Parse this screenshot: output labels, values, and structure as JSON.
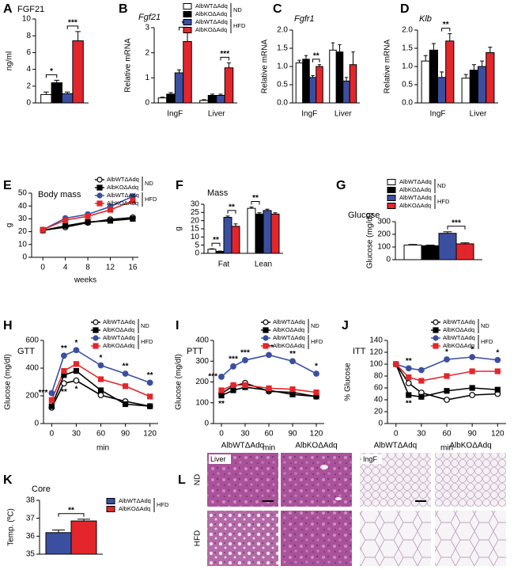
{
  "chart_data": [
    {
      "type": "bar",
      "panel": "A",
      "title": "FGF21",
      "ylabel": "ng/ml",
      "categories": [
        null
      ],
      "series": [
        {
          "color": "#ffffff",
          "values": [
            1.0
          ],
          "errors": [
            0.3
          ]
        },
        {
          "color": "#000000",
          "values": [
            2.4
          ],
          "errors": [
            0.3
          ]
        },
        {
          "color": "#3a4fa0",
          "values": [
            1.1
          ],
          "errors": [
            0.2
          ]
        },
        {
          "color": "#e3262b",
          "values": [
            7.4
          ],
          "errors": [
            1.1
          ]
        }
      ],
      "ylim": [
        0,
        10
      ],
      "yticks": [
        0,
        2,
        4,
        6,
        8,
        10
      ],
      "annotations": [
        "*",
        "***"
      ]
    },
    {
      "type": "bar",
      "panel": "B",
      "title": "Fgf21",
      "title_italic": true,
      "ylabel": "Relative mRNA",
      "categories": [
        "IngF",
        "Liver"
      ],
      "series": [
        {
          "name": "AlbWTΔAdq",
          "color": "#ffffff",
          "values": [
            0.2,
            0.1
          ],
          "errors": [
            0.03,
            0.03
          ]
        },
        {
          "name": "AlbKOΔAdq",
          "color": "#000000",
          "values": [
            0.35,
            0.3
          ],
          "errors": [
            0.06,
            0.05
          ]
        },
        {
          "name": "AlbWTΔAdq",
          "color": "#3a4fa0",
          "values": [
            1.2,
            0.3
          ],
          "errors": [
            0.12,
            0.05
          ]
        },
        {
          "name": "AlbKOΔAdq",
          "color": "#e3262b",
          "values": [
            2.45,
            1.4
          ],
          "errors": [
            0.35,
            0.2
          ]
        }
      ],
      "legend_groups": [
        "ND",
        "HFD"
      ],
      "ylim": [
        0,
        3
      ],
      "yticks": [
        0,
        1,
        2,
        3
      ],
      "annotations": [
        "*",
        "***"
      ]
    },
    {
      "type": "bar",
      "panel": "C",
      "title": "Fgfr1",
      "title_italic": true,
      "ylabel": "Relative mRNA",
      "categories": [
        "IngF",
        "Liver"
      ],
      "series": [
        {
          "color": "#ffffff",
          "values": [
            1.1,
            1.45
          ],
          "errors": [
            0.07,
            0.2
          ]
        },
        {
          "color": "#000000",
          "values": [
            1.2,
            1.4
          ],
          "errors": [
            0.1,
            0.2
          ]
        },
        {
          "color": "#3a4fa0",
          "values": [
            0.7,
            0.6
          ],
          "errors": [
            0.05,
            0.1
          ]
        },
        {
          "color": "#e3262b",
          "values": [
            1.0,
            1.05
          ],
          "errors": [
            0.05,
            0.35
          ]
        }
      ],
      "ylim": [
        0,
        2
      ],
      "yticks": [
        {
          "value": 0,
          "label": "0.0"
        },
        {
          "value": 0.5,
          "label": "0.5"
        },
        {
          "value": 1,
          "label": "1.0"
        },
        {
          "value": 1.5,
          "label": "1.5"
        },
        {
          "value": 2,
          "label": "2.0"
        }
      ],
      "annotations": [
        "**"
      ]
    },
    {
      "type": "bar",
      "panel": "D",
      "title": "Klb",
      "title_italic": true,
      "ylabel": "Relative mRNA",
      "categories": [
        "IngF",
        "Liver"
      ],
      "series": [
        {
          "color": "#ffffff",
          "values": [
            1.15,
            0.68
          ],
          "errors": [
            0.15,
            0.1
          ]
        },
        {
          "color": "#000000",
          "values": [
            1.45,
            0.9
          ],
          "errors": [
            0.18,
            0.15
          ]
        },
        {
          "color": "#3a4fa0",
          "values": [
            0.7,
            1.0
          ],
          "errors": [
            0.15,
            0.15
          ]
        },
        {
          "color": "#e3262b",
          "values": [
            1.7,
            1.38
          ],
          "errors": [
            0.2,
            0.15
          ]
        }
      ],
      "ylim": [
        0,
        2
      ],
      "yticks": [
        {
          "value": 0,
          "label": "0.0"
        },
        {
          "value": 0.5,
          "label": "0.5"
        },
        {
          "value": 1,
          "label": "1.0"
        },
        {
          "value": 1.5,
          "label": "1.5"
        },
        {
          "value": 2,
          "label": "2.0"
        }
      ],
      "annotations": [
        "**"
      ]
    },
    {
      "type": "line",
      "panel": "E",
      "title": "Body mass",
      "ylabel": "g",
      "xlabel": "weeks",
      "x": [
        0,
        4,
        8,
        12,
        16
      ],
      "xlim": [
        -2,
        17
      ],
      "xticks": [
        0,
        4,
        8,
        12,
        16
      ],
      "series": [
        {
          "name": "AlbWTΔAdq",
          "color": "#ffffff",
          "marker": "circle",
          "values": [
            21,
            23.5,
            27,
            29.5,
            31
          ]
        },
        {
          "name": "AlbKOΔAdq",
          "color": "#000000",
          "marker": "square",
          "values": [
            21,
            24.5,
            27.5,
            28.5,
            30
          ]
        },
        {
          "name": "AlbWTΔAdq",
          "color": "#3a4fa0",
          "marker": "circle",
          "values": [
            21.5,
            30.5,
            33.5,
            39.5,
            47.5
          ]
        },
        {
          "name": "AlbKOΔAdq",
          "color": "#e3262b",
          "marker": "square",
          "values": [
            21.5,
            29,
            32,
            37,
            44
          ]
        }
      ],
      "legend_groups": [
        "ND",
        "HFD"
      ],
      "ylim": [
        0,
        50
      ],
      "yticks": [
        0,
        10,
        20,
        30,
        40,
        50
      ]
    },
    {
      "type": "bar",
      "panel": "F",
      "title": "Mass",
      "ylabel": "g",
      "categories": [
        "Fat",
        "Lean"
      ],
      "series": [
        {
          "color": "#ffffff",
          "values": [
            2.5,
            27.5
          ],
          "errors": [
            0.3,
            0.8
          ]
        },
        {
          "color": "#000000",
          "values": [
            1.2,
            24
          ],
          "errors": [
            0.2,
            0.8
          ]
        },
        {
          "color": "#3a4fa0",
          "values": [
            22,
            26.2
          ],
          "errors": [
            0.8,
            0.8
          ]
        },
        {
          "color": "#e3262b",
          "values": [
            16.5,
            24
          ],
          "errors": [
            1.5,
            0.8
          ]
        }
      ],
      "ylim": [
        0,
        30
      ],
      "yticks": [
        0,
        5,
        10,
        15,
        20,
        25,
        30
      ],
      "annotations": [
        "**",
        "**",
        "**"
      ]
    },
    {
      "type": "bar",
      "panel": "G",
      "title": "Glucose",
      "ylabel": "Glucose (mg/dl)",
      "categories": [
        null
      ],
      "series": [
        {
          "name": "AlbWTΔAdq",
          "color": "#ffffff",
          "values": [
            115
          ],
          "errors": [
            5
          ]
        },
        {
          "name": "AlbKOΔAdq",
          "color": "#000000",
          "values": [
            110
          ],
          "errors": [
            5
          ]
        },
        {
          "name": "AlbWTΔAdq",
          "color": "#3a4fa0",
          "values": [
            208
          ],
          "errors": [
            12
          ]
        },
        {
          "name": "AlbKOΔAdq",
          "color": "#e3262b",
          "values": [
            125
          ],
          "errors": [
            8
          ]
        }
      ],
      "legend_groups": [
        "ND",
        "HFD"
      ],
      "ylim": [
        0,
        300
      ],
      "yticks": [
        0,
        100,
        200,
        300
      ],
      "annotations": [
        "***"
      ]
    },
    {
      "type": "line",
      "panel": "H",
      "title": "GTT",
      "ylabel": "Glucose (mg/dl)",
      "xlabel": "min",
      "x": [
        0,
        15,
        30,
        60,
        90,
        120
      ],
      "xlim": [
        -10,
        130
      ],
      "xticks": [
        0,
        30,
        60,
        90,
        120
      ],
      "series": [
        {
          "name": "AlbWTΔAdq",
          "color": "#ffffff",
          "marker": "circle",
          "values": [
            115,
            290,
            310,
            205,
            160,
            125
          ]
        },
        {
          "name": "AlbKOΔAdq",
          "color": "#000000",
          "marker": "square",
          "values": [
            125,
            350,
            380,
            240,
            140,
            125
          ]
        },
        {
          "name": "AlbWTΔAdq",
          "color": "#3a4fa0",
          "marker": "circle",
          "values": [
            220,
            490,
            530,
            420,
            360,
            295
          ]
        },
        {
          "name": "AlbKOΔAdq",
          "color": "#e3262b",
          "marker": "square",
          "values": [
            170,
            380,
            430,
            320,
            270,
            195
          ]
        }
      ],
      "legend_groups": [
        "ND",
        "HFD"
      ],
      "ylim": [
        0,
        600
      ],
      "yticks": [
        0,
        200,
        400,
        600
      ],
      "annotations": [
        "***",
        "**",
        "*",
        "*",
        "**",
        "**",
        "**",
        "*"
      ]
    },
    {
      "type": "line",
      "panel": "I",
      "title": "PTT",
      "ylabel": "Glucose (mg/dl)",
      "xlabel": "min",
      "x": [
        0,
        15,
        30,
        60,
        90,
        120
      ],
      "xlim": [
        -10,
        130
      ],
      "xticks": [
        0,
        30,
        60,
        90,
        120
      ],
      "series": [
        {
          "name": "AlbWTΔAdq",
          "color": "#ffffff",
          "marker": "circle",
          "values": [
            145,
            180,
            195,
            155,
            150,
            130
          ]
        },
        {
          "name": "AlbKOΔAdq",
          "color": "#000000",
          "marker": "square",
          "values": [
            135,
            160,
            175,
            160,
            140,
            130
          ]
        },
        {
          "name": "AlbWTΔAdq",
          "color": "#3a4fa0",
          "marker": "circle",
          "values": [
            225,
            275,
            305,
            330,
            300,
            240
          ]
        },
        {
          "name": "AlbKOΔAdq",
          "color": "#e3262b",
          "marker": "square",
          "values": [
            160,
            185,
            185,
            170,
            165,
            150
          ]
        }
      ],
      "legend_groups": [
        "ND",
        "HFD"
      ],
      "ylim": [
        0,
        400
      ],
      "yticks": [
        0,
        100,
        200,
        300,
        400
      ],
      "annotations": [
        "***",
        "***",
        "***",
        "***",
        "**",
        "*",
        "**"
      ]
    },
    {
      "type": "line",
      "panel": "J",
      "title": "ITT",
      "ylabel": "% Glucose",
      "xlabel": "min",
      "x": [
        0,
        15,
        30,
        60,
        90,
        120
      ],
      "xlim": [
        -10,
        130
      ],
      "xticks": [
        0,
        30,
        60,
        90,
        120
      ],
      "series": [
        {
          "name": "AlbWTΔAdq",
          "color": "#ffffff",
          "marker": "circle",
          "values": [
            100,
            68,
            52,
            40,
            48,
            50
          ]
        },
        {
          "name": "AlbKOΔAdq",
          "color": "#000000",
          "marker": "square",
          "values": [
            100,
            48,
            45,
            55,
            60,
            57
          ]
        },
        {
          "name": "AlbWTΔAdq",
          "color": "#3a4fa0",
          "marker": "circle",
          "values": [
            100,
            93,
            90,
            108,
            112,
            107
          ]
        },
        {
          "name": "AlbKOΔAdq",
          "color": "#e3262b",
          "marker": "square",
          "values": [
            100,
            78,
            72,
            80,
            88,
            88
          ]
        }
      ],
      "legend_groups": [
        "ND",
        "HFD"
      ],
      "ylim": [
        0,
        140
      ],
      "yticks": [
        0,
        20,
        40,
        60,
        80,
        100,
        120,
        140
      ],
      "annotations": [
        "**",
        "*",
        "*",
        "*",
        "**"
      ]
    },
    {
      "type": "bar",
      "panel": "K",
      "title": "Core",
      "ylabel": "Temp. (ºC)",
      "categories": [
        null
      ],
      "series": [
        {
          "name": "AlbWTΔAdq",
          "color": "#3a4fa0",
          "values": [
            36.2
          ],
          "errors": [
            0.15
          ]
        },
        {
          "name": "AlbKOΔAdq",
          "color": "#e3262b",
          "values": [
            36.85
          ],
          "errors": [
            0.1
          ]
        }
      ],
      "legend_groups": [
        "HFD"
      ],
      "ylim": [
        35,
        38
      ],
      "yticks": [
        35,
        36,
        37,
        38
      ],
      "annotations": [
        "**"
      ]
    }
  ],
  "histology": {
    "panel": "L",
    "columns": [
      "AlbWTΔAdq",
      "AlbKOΔAdq",
      "AlbWTΔAdq",
      "AlbKOΔAdq"
    ],
    "rows": [
      "ND",
      "HFD"
    ],
    "tissues": [
      "Liver",
      "IngF"
    ]
  }
}
